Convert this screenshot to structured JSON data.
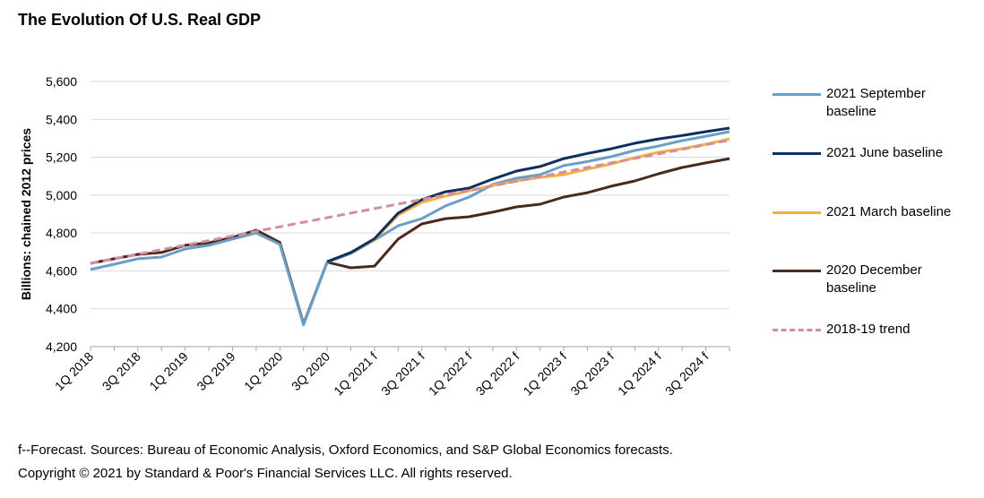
{
  "title": "The Evolution Of U.S. Real GDP",
  "footer": {
    "line1": "f--Forecast. Sources: Bureau of Economic Analysis, Oxford Economics, and S&P Global Economics forecasts.",
    "line2": "Copyright © 2021 by Standard & Poor's Financial Services LLC. All rights reserved."
  },
  "chart_data": {
    "type": "line",
    "title": "The Evolution Of U.S. Real GDP",
    "xlabel": "",
    "ylabel": "Billions: chained 2012 prices",
    "ylim": [
      4200,
      5600
    ],
    "yticks": [
      4200,
      4400,
      4600,
      4800,
      5000,
      5200,
      5400,
      5600
    ],
    "ytick_labels": [
      "4,200",
      "4,400",
      "4,600",
      "4,800",
      "5,000",
      "5,200",
      "5,400",
      "5,600"
    ],
    "grid": "horizontal",
    "legend_position": "right",
    "x": [
      "1Q 2018",
      "2Q 2018",
      "3Q 2018",
      "4Q 2018",
      "1Q 2019",
      "2Q 2019",
      "3Q 2019",
      "4Q 2019",
      "1Q 2020",
      "2Q 2020",
      "3Q 2020",
      "4Q 2020",
      "1Q 2021 f",
      "2Q 2021 f",
      "3Q 2021 f",
      "4Q 2021 f",
      "1Q 2022 f",
      "2Q 2022 f",
      "3Q 2022 f",
      "4Q 2022 f",
      "1Q 2023 f",
      "2Q 2023 f",
      "3Q 2023 f",
      "4Q 2023 f",
      "1Q 2024 f",
      "2Q 2024 f",
      "3Q 2024 f",
      "4Q 2024 f"
    ],
    "xtick_labels_shown": [
      "1Q 2018",
      "3Q 2018",
      "1Q 2019",
      "3Q 2019",
      "1Q 2020",
      "3Q 2020",
      "1Q 2021 f",
      "3Q 2021 f",
      "1Q 2022 f",
      "3Q 2022 f",
      "1Q 2023 f",
      "3Q 2023 f",
      "1Q 2024 f",
      "3Q 2024 f"
    ],
    "series": [
      {
        "name": "2021 September baseline",
        "color": "#6a9ec5",
        "style": "solid",
        "values": [
          4607,
          4635,
          4664,
          4673,
          4716,
          4735,
          4768,
          4800,
          4740,
          4315,
          4646,
          4692,
          4763,
          4838,
          4876,
          4943,
          4990,
          5056,
          5089,
          5108,
          5156,
          5177,
          5203,
          5236,
          5259,
          5288,
          5311,
          5335
        ]
      },
      {
        "name": "2021 June baseline",
        "color": "#0f2f5f",
        "style": "solid",
        "values": [
          null,
          null,
          null,
          null,
          null,
          null,
          null,
          null,
          null,
          null,
          4649,
          4697,
          4770,
          4905,
          4976,
          5018,
          5037,
          5085,
          5127,
          5151,
          5193,
          5220,
          5245,
          5274,
          5297,
          5315,
          5335,
          5354
        ]
      },
      {
        "name": "2021 March baseline",
        "color": "#f5b041",
        "style": "solid",
        "values": [
          null,
          null,
          null,
          null,
          null,
          null,
          null,
          null,
          null,
          null,
          4649,
          4697,
          4766,
          4895,
          4962,
          4995,
          5023,
          5051,
          5075,
          5094,
          5108,
          5137,
          5165,
          5198,
          5227,
          5245,
          5269,
          5297
        ]
      },
      {
        "name": "2020 December baseline",
        "color": "#4a2a1a",
        "style": "solid",
        "values": [
          4640,
          4664,
          4687,
          4697,
          4735,
          4748,
          4777,
          4815,
          4750,
          4320,
          4646,
          4616,
          4625,
          4768,
          4848,
          4876,
          4886,
          4910,
          4938,
          4952,
          4990,
          5013,
          5047,
          5075,
          5113,
          5146,
          5170,
          5193
        ]
      },
      {
        "name": "2018-19 trend",
        "color": "#d48ea3",
        "style": "dashed",
        "values": [
          4640,
          4664,
          4688,
          4712,
          4736,
          4760,
          4785,
          4809,
          4833,
          4857,
          4881,
          4905,
          4929,
          4953,
          4977,
          5001,
          5025,
          5049,
          5073,
          5097,
          5122,
          5146,
          5170,
          5194,
          5218,
          5242,
          5266,
          5290
        ]
      }
    ]
  }
}
